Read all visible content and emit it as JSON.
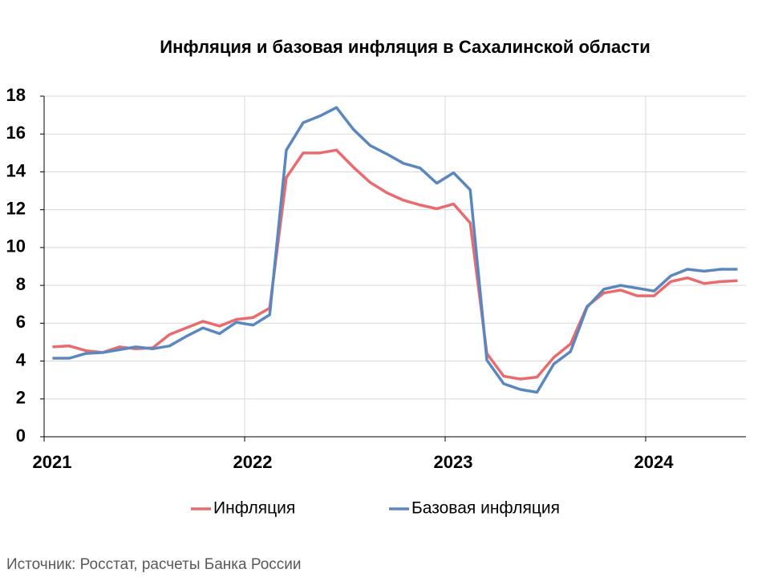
{
  "chart_data": {
    "type": "line",
    "title": "Инфляция и базовая инфляция в Сахалинской области",
    "source": "Источник: Росстат, расчеты Банка России",
    "x": [
      2021.042,
      2021.125,
      2021.208,
      2021.292,
      2021.375,
      2021.458,
      2021.542,
      2021.625,
      2021.708,
      2021.792,
      2021.875,
      2021.958,
      2022.042,
      2022.125,
      2022.208,
      2022.292,
      2022.375,
      2022.458,
      2022.542,
      2022.625,
      2022.708,
      2022.792,
      2022.875,
      2022.958,
      2023.042,
      2023.125,
      2023.208,
      2023.292,
      2023.375,
      2023.458,
      2023.542,
      2023.625,
      2023.708,
      2023.792,
      2023.875,
      2023.958,
      2024.042,
      2024.125,
      2024.208,
      2024.292,
      2024.375,
      2024.458
    ],
    "series": [
      {
        "name": "Инфляция",
        "color": "#e96b6e",
        "values": [
          4.75,
          4.8,
          4.55,
          4.45,
          4.75,
          4.65,
          4.7,
          5.4,
          5.75,
          6.1,
          5.85,
          6.2,
          6.3,
          6.8,
          13.7,
          15.0,
          15.0,
          15.15,
          14.25,
          13.45,
          12.9,
          12.5,
          12.25,
          12.05,
          12.3,
          11.3,
          4.4,
          3.2,
          3.05,
          3.15,
          4.2,
          4.9,
          6.9,
          7.6,
          7.75,
          7.45,
          7.45,
          8.2,
          8.4,
          8.1,
          8.2,
          8.25
        ]
      },
      {
        "name": "Базовая инфляция",
        "color": "#5b87c0",
        "values": [
          4.15,
          4.15,
          4.4,
          4.45,
          4.6,
          4.75,
          4.65,
          4.8,
          5.3,
          5.75,
          5.45,
          6.05,
          5.9,
          6.45,
          15.15,
          16.6,
          16.95,
          17.4,
          16.25,
          15.4,
          14.95,
          14.45,
          14.2,
          13.4,
          13.95,
          13.05,
          4.05,
          2.8,
          2.5,
          2.35,
          3.85,
          4.5,
          6.85,
          7.8,
          8.0,
          7.85,
          7.7,
          8.5,
          8.85,
          8.75,
          8.85,
          8.85
        ]
      }
    ],
    "xlim": [
      2021,
      2024.5
    ],
    "xticks": [
      2021,
      2022,
      2023,
      2024
    ],
    "ylim": [
      0,
      18
    ],
    "yticks": [
      0,
      2,
      4,
      6,
      8,
      10,
      12,
      14,
      16,
      18
    ],
    "grid": true,
    "legend": "bottom"
  }
}
